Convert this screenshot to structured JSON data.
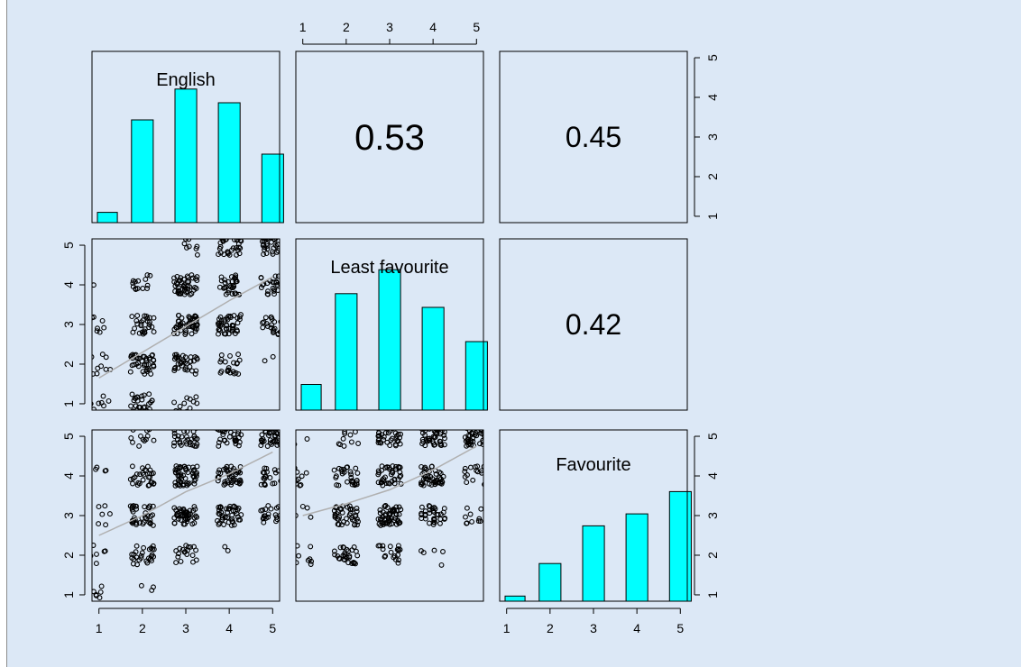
{
  "chart_data": {
    "type": "scatter",
    "description_kind": "pairs",
    "variables": [
      "English",
      "Least favourite",
      "Favourite"
    ],
    "axis_ticks": [
      "1",
      "2",
      "3",
      "4",
      "5"
    ],
    "axis_range": [
      1,
      5
    ],
    "hist_bar_color": "#00ffff",
    "smooth_line_color": "#b0b0b0",
    "panel_background": "#dce8f6",
    "correlations": [
      {
        "pair": [
          "English",
          "Least favourite"
        ],
        "value": "0.53"
      },
      {
        "pair": [
          "English",
          "Favourite"
        ],
        "value": "0.45"
      },
      {
        "pair": [
          "Least favourite",
          "Favourite"
        ],
        "value": "0.42"
      }
    ],
    "histograms": [
      {
        "variable": "English",
        "categories": [
          1,
          2,
          3,
          4,
          5
        ],
        "values": [
          0.06,
          0.6,
          0.78,
          0.7,
          0.4
        ]
      },
      {
        "variable": "Least favourite",
        "categories": [
          1,
          2,
          3,
          4,
          5
        ],
        "values": [
          0.15,
          0.68,
          0.82,
          0.6,
          0.4
        ]
      },
      {
        "variable": "Favourite",
        "categories": [
          1,
          2,
          3,
          4,
          5
        ],
        "values": [
          0.03,
          0.22,
          0.44,
          0.51,
          0.64
        ]
      }
    ],
    "scatter_panels": [
      {
        "x": "English",
        "y": "Least favourite",
        "smooth": [
          [
            1,
            1.65
          ],
          [
            2,
            2.3
          ],
          [
            3,
            2.95
          ],
          [
            4,
            3.6
          ],
          [
            5,
            4.2
          ]
        ]
      },
      {
        "x": "English",
        "y": "Favourite",
        "smooth": [
          [
            1,
            2.5
          ],
          [
            2,
            3.0
          ],
          [
            3,
            3.6
          ],
          [
            4,
            4.05
          ],
          [
            5,
            4.6
          ]
        ]
      },
      {
        "x": "Least favourite",
        "y": "Favourite",
        "smooth": [
          [
            1,
            3.0
          ],
          [
            2,
            3.3
          ],
          [
            3,
            3.65
          ],
          [
            4,
            4.15
          ],
          [
            5,
            4.75
          ]
        ]
      }
    ]
  }
}
